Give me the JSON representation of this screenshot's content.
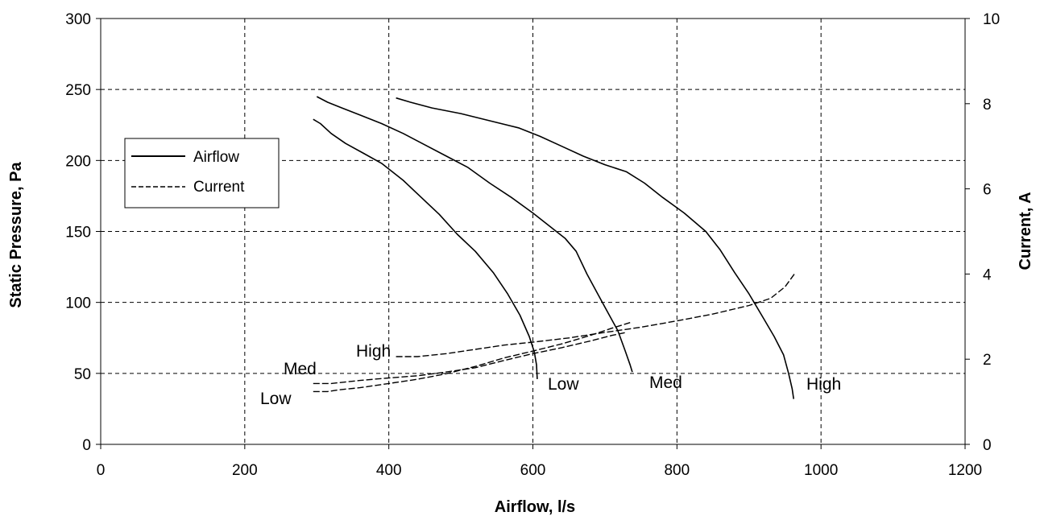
{
  "chart_data": {
    "type": "line",
    "xlabel": "Airflow, l/s",
    "ylabel_left": "Static Pressure, Pa",
    "ylabel_right": "Current, A",
    "xlim": [
      0,
      1200
    ],
    "ylim_left": [
      0,
      300
    ],
    "ylim_right": [
      0,
      10
    ],
    "x_ticks": [
      "0",
      "200",
      "400",
      "600",
      "800",
      "1000",
      "1200"
    ],
    "y_left_ticks": [
      "0",
      "50",
      "100",
      "150",
      "200",
      "250",
      "300"
    ],
    "y_right_ticks": [
      "0",
      "2",
      "4",
      "6",
      "8",
      "10"
    ],
    "grid": true,
    "legend_position": "upper-left",
    "legend": [
      {
        "label": "Airflow",
        "style": "solid"
      },
      {
        "label": "Current",
        "style": "dashed"
      }
    ],
    "line_color": "#000000",
    "series": [
      {
        "name": "Airflow",
        "speed": "Low",
        "axis": "left",
        "style": "solid",
        "points": [
          [
            295,
            229
          ],
          [
            305,
            226
          ],
          [
            320,
            219
          ],
          [
            340,
            212
          ],
          [
            365,
            205
          ],
          [
            390,
            198
          ],
          [
            420,
            186
          ],
          [
            445,
            174
          ],
          [
            470,
            162
          ],
          [
            495,
            148
          ],
          [
            520,
            136
          ],
          [
            545,
            121
          ],
          [
            565,
            106
          ],
          [
            582,
            91
          ],
          [
            595,
            76
          ],
          [
            602,
            65
          ],
          [
            605,
            56
          ],
          [
            606,
            46
          ]
        ]
      },
      {
        "name": "Airflow",
        "speed": "Med",
        "axis": "left",
        "style": "solid",
        "points": [
          [
            300,
            245
          ],
          [
            315,
            241
          ],
          [
            335,
            237
          ],
          [
            360,
            232
          ],
          [
            390,
            226
          ],
          [
            420,
            219
          ],
          [
            450,
            211
          ],
          [
            480,
            203
          ],
          [
            510,
            195
          ],
          [
            540,
            184
          ],
          [
            570,
            174
          ],
          [
            600,
            163
          ],
          [
            625,
            153
          ],
          [
            645,
            145
          ],
          [
            660,
            136
          ],
          [
            675,
            120
          ],
          [
            690,
            106
          ],
          [
            705,
            92
          ],
          [
            718,
            80
          ],
          [
            728,
            66
          ],
          [
            735,
            56
          ],
          [
            738,
            51
          ]
        ]
      },
      {
        "name": "Airflow",
        "speed": "High",
        "axis": "left",
        "style": "solid",
        "points": [
          [
            410,
            244
          ],
          [
            430,
            241
          ],
          [
            460,
            237
          ],
          [
            500,
            233
          ],
          [
            540,
            228
          ],
          [
            580,
            223
          ],
          [
            610,
            217
          ],
          [
            640,
            210
          ],
          [
            670,
            203
          ],
          [
            700,
            197
          ],
          [
            730,
            192
          ],
          [
            755,
            184
          ],
          [
            780,
            174
          ],
          [
            810,
            163
          ],
          [
            840,
            150
          ],
          [
            860,
            137
          ],
          [
            880,
            121
          ],
          [
            900,
            106
          ],
          [
            920,
            89
          ],
          [
            935,
            76
          ],
          [
            948,
            63
          ],
          [
            955,
            50
          ],
          [
            960,
            39
          ],
          [
            962,
            32
          ]
        ]
      },
      {
        "name": "Current",
        "speed": "Low",
        "axis": "right",
        "style": "dashed",
        "points": [
          [
            295,
            1.24
          ],
          [
            315,
            1.24
          ],
          [
            330,
            1.28
          ],
          [
            360,
            1.33
          ],
          [
            400,
            1.43
          ],
          [
            440,
            1.53
          ],
          [
            480,
            1.66
          ],
          [
            520,
            1.83
          ],
          [
            560,
            2.03
          ],
          [
            600,
            2.19
          ],
          [
            640,
            2.36
          ],
          [
            680,
            2.56
          ],
          [
            710,
            2.73
          ],
          [
            735,
            2.86
          ]
        ]
      },
      {
        "name": "Current",
        "speed": "Med",
        "axis": "right",
        "style": "dashed",
        "points": [
          [
            295,
            1.43
          ],
          [
            320,
            1.43
          ],
          [
            360,
            1.5
          ],
          [
            400,
            1.56
          ],
          [
            440,
            1.61
          ],
          [
            480,
            1.7
          ],
          [
            520,
            1.8
          ],
          [
            560,
            1.97
          ],
          [
            600,
            2.13
          ],
          [
            640,
            2.27
          ],
          [
            680,
            2.43
          ],
          [
            710,
            2.56
          ],
          [
            730,
            2.63
          ]
        ]
      },
      {
        "name": "Current",
        "speed": "High",
        "axis": "right",
        "style": "dashed",
        "points": [
          [
            410,
            2.06
          ],
          [
            440,
            2.06
          ],
          [
            480,
            2.13
          ],
          [
            520,
            2.23
          ],
          [
            560,
            2.33
          ],
          [
            600,
            2.4
          ],
          [
            650,
            2.5
          ],
          [
            700,
            2.63
          ],
          [
            750,
            2.75
          ],
          [
            800,
            2.9
          ],
          [
            850,
            3.06
          ],
          [
            900,
            3.26
          ],
          [
            930,
            3.43
          ],
          [
            950,
            3.7
          ],
          [
            963,
            4.0
          ]
        ]
      }
    ],
    "curve_labels": {
      "current_low": "Low",
      "current_med": "Med",
      "current_high": "High",
      "airflow_low": "Low",
      "airflow_med": "Med",
      "airflow_high": "High"
    }
  }
}
